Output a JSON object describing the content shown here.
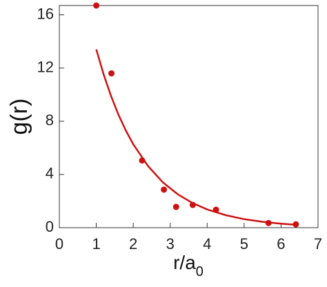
{
  "chart_data": {
    "type": "scatter",
    "y_label": "g(r)",
    "x_label": {
      "text": "r/a",
      "subscript": "0"
    },
    "xlim": [
      0,
      7
    ],
    "ylim": [
      0,
      16.7
    ],
    "xticks": [
      0,
      1,
      2,
      3,
      4,
      5,
      6,
      7
    ],
    "yticks": [
      0,
      4,
      8,
      12,
      16
    ],
    "series": [
      {
        "type": "scatter",
        "color": "#cc1111",
        "x": [
          1,
          1.41,
          2.24,
          2.83,
          3.16,
          3.61,
          4.24,
          5.66,
          6.4
        ],
        "values": [
          16.7,
          11.6,
          5.05,
          2.86,
          1.56,
          1.71,
          1.35,
          0.35,
          0.25
        ]
      },
      {
        "type": "line",
        "color": "#cc1111",
        "x": [
          1,
          1.2,
          1.4,
          1.6,
          1.8,
          2.0,
          2.4,
          2.8,
          3.2,
          3.6,
          4.0,
          4.5,
          5.0,
          5.5,
          6.0,
          6.4
        ],
        "values": [
          13.4,
          11.51,
          9.89,
          8.49,
          7.3,
          6.27,
          4.63,
          3.41,
          2.52,
          1.86,
          1.37,
          0.94,
          0.64,
          0.44,
          0.3,
          0.22
        ]
      }
    ]
  }
}
